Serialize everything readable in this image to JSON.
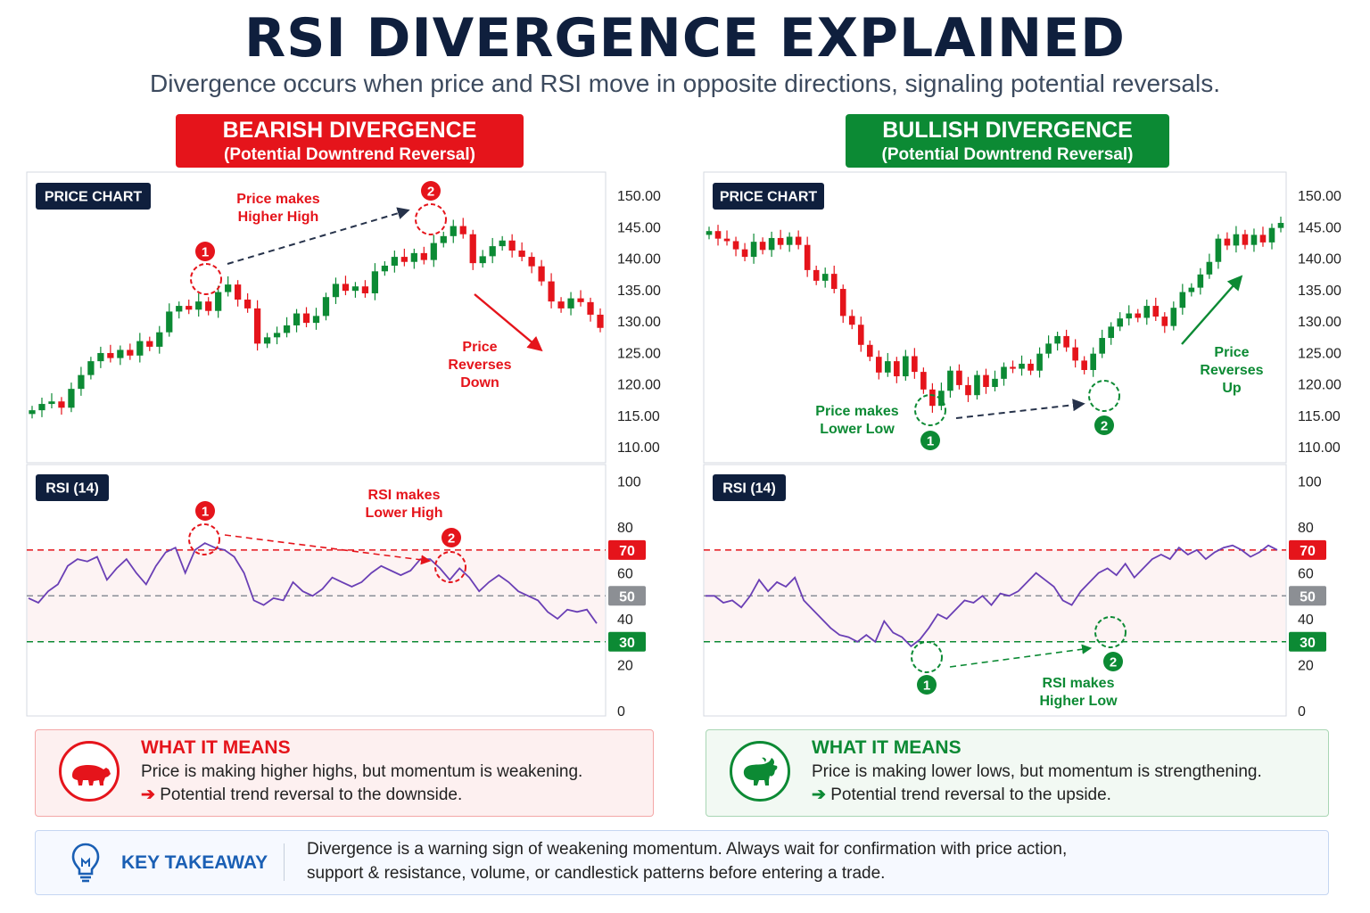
{
  "title": "RSI DIVERGENCE EXPLAINED",
  "subtitle": "Divergence occurs when price and RSI move in opposite directions, signaling potential reversals.",
  "colors": {
    "bear": "#e5141b",
    "bull": "#0c8a34",
    "rsi_line": "#6a3fb5",
    "navy": "#0f1f3d"
  },
  "bearish": {
    "header": "BEARISH DIVERGENCE",
    "subheader": "(Potential Downtrend Reversal)",
    "price_label": "PRICE CHART",
    "rsi_label": "RSI (14)",
    "annotations": {
      "price_hh": [
        "Price makes",
        "Higher High"
      ],
      "price_rev": [
        "Price",
        "Reverses",
        "Down"
      ],
      "rsi_lh": [
        "RSI makes",
        "Lower High"
      ],
      "marker1": "1",
      "marker2": "2"
    },
    "means_title": "WHAT IT MEANS",
    "means_line1": "Price is making higher highs, but momentum is weakening.",
    "means_line2": "Potential trend reversal to the downside.",
    "means_icon": "bear-icon"
  },
  "bullish": {
    "header": "BULLISH DIVERGENCE",
    "subheader": "(Potential Downtrend Reversal)",
    "price_label": "PRICE CHART",
    "rsi_label": "RSI (14)",
    "annotations": {
      "price_ll": [
        "Price makes",
        "Lower Low"
      ],
      "price_rev": [
        "Price",
        "Reverses",
        "Up"
      ],
      "rsi_hl": [
        "RSI makes",
        "Higher Low"
      ],
      "marker1": "1",
      "marker2": "2"
    },
    "means_title": "WHAT IT MEANS",
    "means_line1": "Price is making lower lows, but momentum is strengthening.",
    "means_line2": "Potential trend reversal to the upside.",
    "means_icon": "bull-icon"
  },
  "arrow_glyph": "➔",
  "takeaway": {
    "icon": "lightbulb-icon",
    "title": "KEY TAKEAWAY",
    "line1": "Divergence is a warning sign of weakening momentum. Always wait for confirmation with price action,",
    "line2": "support & resistance, volume, or candlestick patterns before entering a trade."
  },
  "chart_data": [
    {
      "type": "candlestick",
      "name_ref": "bearish-price",
      "y_ticks": [
        "150.00",
        "145.00",
        "140.00",
        "135.00",
        "130.00",
        "125.00",
        "120.00",
        "115.00",
        "110.00"
      ],
      "ylim": [
        107.5,
        152.5
      ],
      "closes": [
        115.8,
        116.8,
        117.2,
        116.2,
        119.2,
        121.4,
        123.6,
        124.9,
        124.1,
        125.4,
        124.5,
        126.8,
        125.9,
        128.2,
        131.5,
        132.4,
        131.8,
        133.1,
        131.6,
        134.6,
        135.8,
        133.4,
        132.0,
        126.4,
        127.4,
        128.1,
        129.3,
        131.2,
        129.7,
        130.8,
        133.8,
        135.9,
        134.8,
        135.5,
        134.4,
        137.9,
        138.8,
        140.2,
        139.4,
        140.8,
        139.7,
        142.4,
        143.5,
        145.1,
        143.8,
        139.2,
        140.3,
        141.9,
        142.8,
        141.2,
        140.2,
        138.7,
        136.3,
        133.1,
        132.0,
        133.6,
        133.0,
        131.0,
        128.9
      ]
    },
    {
      "type": "line",
      "name_ref": "bearish-rsi",
      "y_ticks": [
        "100",
        "80",
        "70",
        "60",
        "50",
        "40",
        "30",
        "20",
        "0"
      ],
      "ylim": [
        0,
        100
      ],
      "levels": [
        70,
        50,
        30
      ],
      "values": [
        49,
        47,
        52,
        55,
        63,
        66,
        65,
        67,
        57,
        62,
        66,
        60,
        55,
        63,
        69,
        71,
        60,
        70,
        73,
        71,
        70,
        67,
        60,
        48,
        46,
        49,
        48,
        56,
        52,
        50,
        53,
        58,
        56,
        54,
        56,
        60,
        63,
        61,
        59,
        61,
        66,
        66,
        62,
        57,
        62,
        58,
        52,
        56,
        59,
        56,
        52,
        50,
        48,
        43,
        40,
        44,
        43,
        44,
        38
      ]
    },
    {
      "type": "candlestick",
      "name_ref": "bullish-price",
      "y_ticks": [
        "150.00",
        "145.00",
        "140.00",
        "135.00",
        "130.00",
        "125.00",
        "120.00",
        "115.00",
        "110.00"
      ],
      "ylim": [
        107.5,
        152.5
      ],
      "closes": [
        144.3,
        143.1,
        142.7,
        141.4,
        140.2,
        142.6,
        141.3,
        143.2,
        142.1,
        143.4,
        142.1,
        138.1,
        136.4,
        137.5,
        135.1,
        130.8,
        129.4,
        126.2,
        124.3,
        121.8,
        123.6,
        121.2,
        124.4,
        121.9,
        119.1,
        116.5,
        118.9,
        122.1,
        119.8,
        118.2,
        121.4,
        119.5,
        120.8,
        122.7,
        122.4,
        123.2,
        122.1,
        124.8,
        126.4,
        127.6,
        125.8,
        123.7,
        122.2,
        124.8,
        127.3,
        129.1,
        130.4,
        131.2,
        130.5,
        132.4,
        130.7,
        129.2,
        132.1,
        134.6,
        135.3,
        137.4,
        139.4,
        143.1,
        142.0,
        143.8,
        142.1,
        143.7,
        142.5,
        144.8,
        145.6
      ]
    },
    {
      "type": "line",
      "name_ref": "bullish-rsi",
      "y_ticks": [
        "100",
        "80",
        "70",
        "60",
        "50",
        "40",
        "30",
        "20",
        "0"
      ],
      "ylim": [
        0,
        100
      ],
      "levels": [
        70,
        50,
        30
      ],
      "values": [
        50,
        50,
        47,
        48,
        45,
        50,
        57,
        52,
        56,
        54,
        58,
        48,
        44,
        40,
        36,
        33,
        32,
        30,
        33,
        30,
        39,
        34,
        32,
        28,
        31,
        36,
        42,
        40,
        44,
        48,
        47,
        50,
        46,
        51,
        50,
        52,
        56,
        60,
        57,
        54,
        48,
        46,
        52,
        56,
        60,
        62,
        59,
        64,
        58,
        62,
        66,
        68,
        66,
        71,
        68,
        70,
        66,
        69,
        71,
        72,
        70,
        67,
        69,
        72,
        70
      ]
    }
  ]
}
